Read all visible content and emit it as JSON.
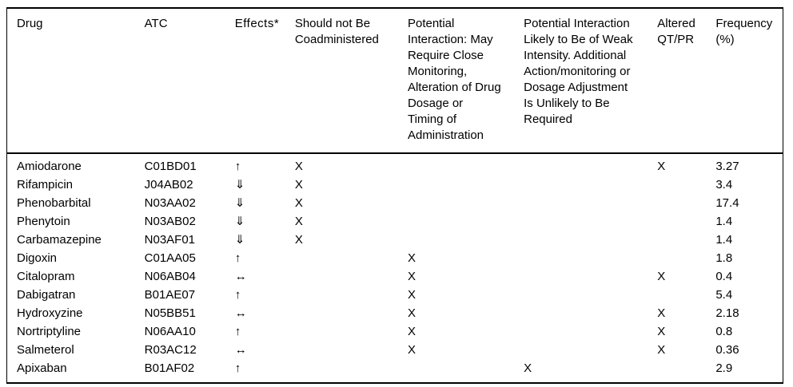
{
  "table": {
    "caption": "drug-interaction-table",
    "mark_symbol": "X",
    "colors": {
      "text": "#000000",
      "border": "#000000",
      "background": "#ffffff"
    },
    "columns": [
      {
        "key": "drug",
        "label": "Drug"
      },
      {
        "key": "atc",
        "label": "ATC"
      },
      {
        "key": "effects",
        "label": "Effects*"
      },
      {
        "key": "no_coadminister",
        "label": "Should not Be\nCoadministered"
      },
      {
        "key": "close_monitoring",
        "label": "Potential\nInteraction: May\nRequire Close\nMonitoring,\nAlteration of Drug\nDosage or\nTiming of\nAdministration"
      },
      {
        "key": "weak_intensity",
        "label": "Potential Interaction\nLikely to Be of Weak\nIntensity. Additional\nAction/monitoring or\nDosage Adjustment\nIs Unlikely to Be\nRequired"
      },
      {
        "key": "altered_qt_pr",
        "label": "Altered\nQT/PR"
      },
      {
        "key": "frequency",
        "label": "Frequency\n(%)"
      }
    ],
    "rows": [
      {
        "drug": "Amiodarone",
        "atc": "C01BD01",
        "effects": "↑",
        "no_coadminister": "X",
        "close_monitoring": "",
        "weak_intensity": "",
        "altered_qt_pr": "X",
        "frequency": "3.27"
      },
      {
        "drug": "Rifampicin",
        "atc": "J04AB02",
        "effects": "⇓",
        "no_coadminister": "X",
        "close_monitoring": "",
        "weak_intensity": "",
        "altered_qt_pr": "",
        "frequency": "3.4"
      },
      {
        "drug": "Phenobarbital",
        "atc": "N03AA02",
        "effects": "⇓",
        "no_coadminister": "X",
        "close_monitoring": "",
        "weak_intensity": "",
        "altered_qt_pr": "",
        "frequency": "17.4"
      },
      {
        "drug": "Phenytoin",
        "atc": "N03AB02",
        "effects": "⇓",
        "no_coadminister": "X",
        "close_monitoring": "",
        "weak_intensity": "",
        "altered_qt_pr": "",
        "frequency": "1.4"
      },
      {
        "drug": "Carbamazepine",
        "atc": "N03AF01",
        "effects": "⇓",
        "no_coadminister": "X",
        "close_monitoring": "",
        "weak_intensity": "",
        "altered_qt_pr": "",
        "frequency": "1.4"
      },
      {
        "drug": "Digoxin",
        "atc": "C01AA05",
        "effects": "↑",
        "no_coadminister": "",
        "close_monitoring": "X",
        "weak_intensity": "",
        "altered_qt_pr": "",
        "frequency": "1.8"
      },
      {
        "drug": "Citalopram",
        "atc": "N06AB04",
        "effects": "↔",
        "no_coadminister": "",
        "close_monitoring": "X",
        "weak_intensity": "",
        "altered_qt_pr": "X",
        "frequency": "0.4"
      },
      {
        "drug": "Dabigatran",
        "atc": "B01AE07",
        "effects": "↑",
        "no_coadminister": "",
        "close_monitoring": "X",
        "weak_intensity": "",
        "altered_qt_pr": "",
        "frequency": "5.4"
      },
      {
        "drug": "Hydroxyzine",
        "atc": "N05BB51",
        "effects": "↔",
        "no_coadminister": "",
        "close_monitoring": "X",
        "weak_intensity": "",
        "altered_qt_pr": "X",
        "frequency": "2.18"
      },
      {
        "drug": "Nortriptyline",
        "atc": "N06AA10",
        "effects": "↑",
        "no_coadminister": "",
        "close_monitoring": "X",
        "weak_intensity": "",
        "altered_qt_pr": "X",
        "frequency": "0.8"
      },
      {
        "drug": "Salmeterol",
        "atc": "R03AC12",
        "effects": "↔",
        "no_coadminister": "",
        "close_monitoring": "X",
        "weak_intensity": "",
        "altered_qt_pr": "X",
        "frequency": "0.36"
      },
      {
        "drug": "Apixaban",
        "atc": "B01AF02",
        "effects": "↑",
        "no_coadminister": "",
        "close_monitoring": "",
        "weak_intensity": "X",
        "altered_qt_pr": "",
        "frequency": "2.9"
      }
    ]
  }
}
